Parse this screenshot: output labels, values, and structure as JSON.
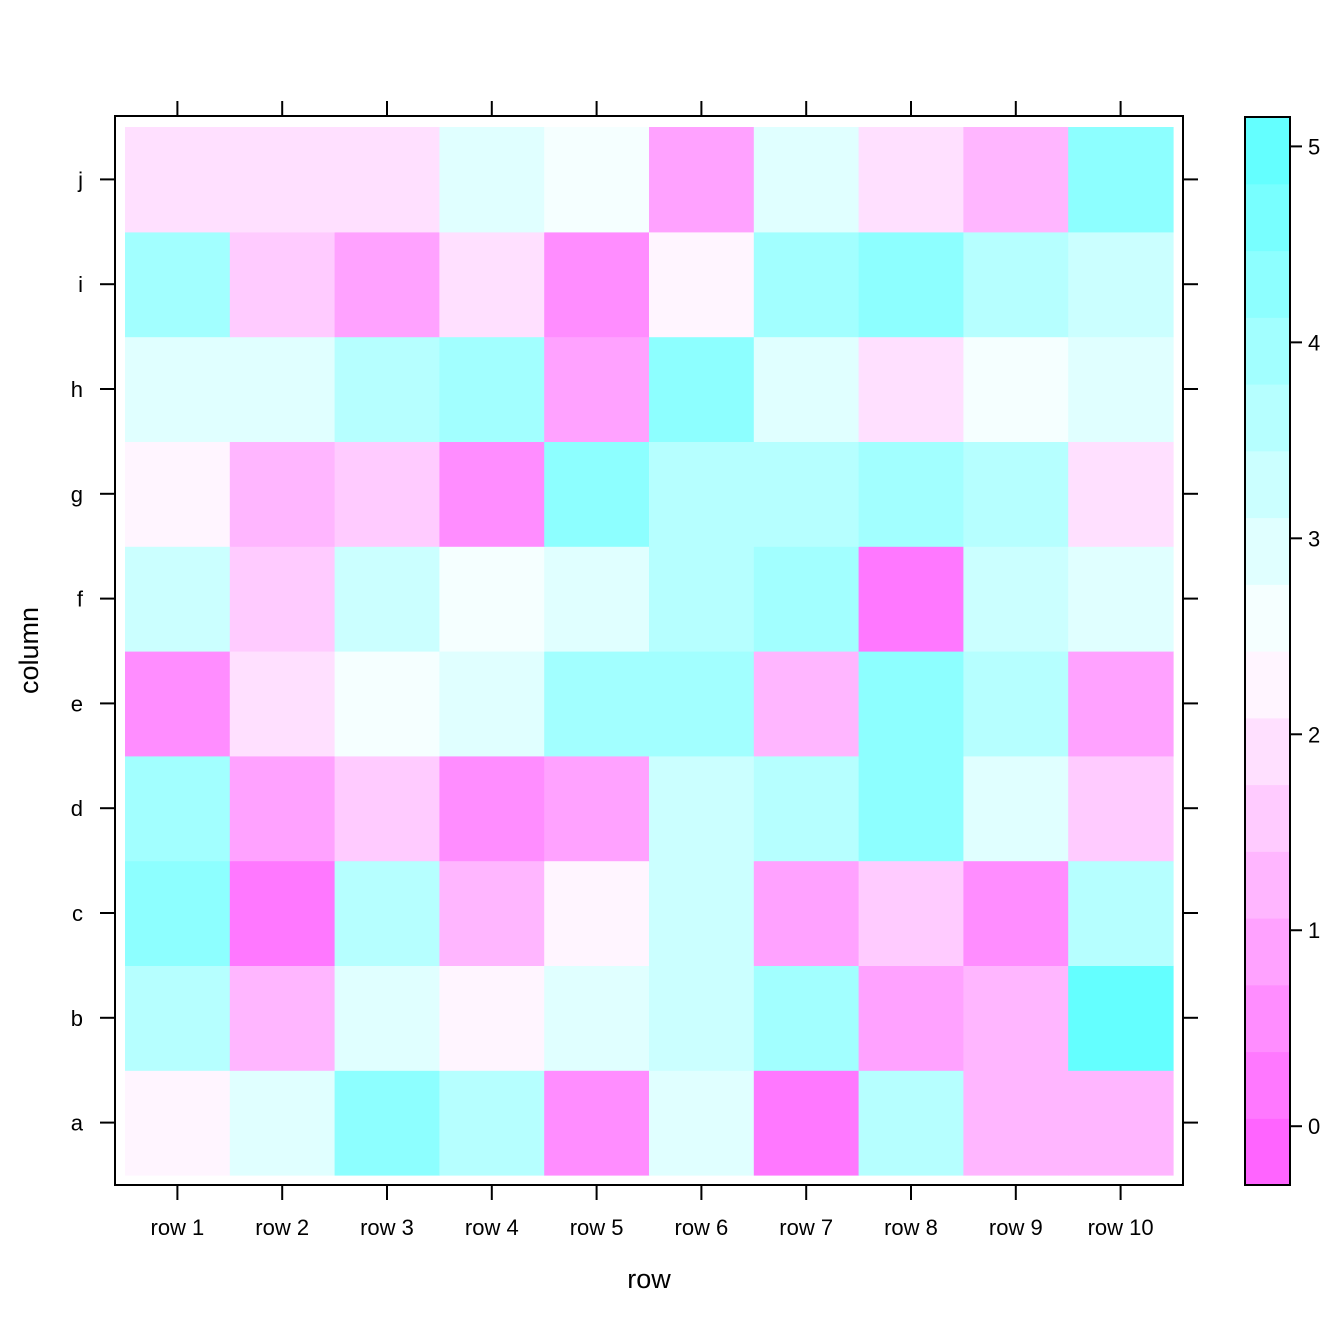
{
  "chart_data": {
    "type": "heatmap",
    "title": "",
    "xlabel": "row",
    "ylabel": "column",
    "x_categories": [
      "row 1",
      "row 2",
      "row 3",
      "row 4",
      "row 5",
      "row 6",
      "row 7",
      "row 8",
      "row 9",
      "row 10"
    ],
    "y_categories": [
      "a",
      "b",
      "c",
      "d",
      "e",
      "f",
      "g",
      "h",
      "i",
      "j"
    ],
    "values": [
      [
        2.3,
        3.1,
        4.45,
        3.6,
        0.55,
        2.95,
        0.05,
        3.5,
        1.1,
        1.35
      ],
      [
        3.5,
        1.3,
        2.95,
        2.15,
        2.9,
        3.4,
        3.95,
        1.0,
        1.3,
        4.85
      ],
      [
        4.4,
        0.15,
        3.65,
        1.1,
        2.1,
        3.2,
        0.85,
        1.6,
        0.6,
        3.7
      ],
      [
        3.95,
        0.95,
        1.6,
        0.6,
        0.8,
        3.35,
        3.7,
        4.2,
        3.0,
        1.7
      ],
      [
        0.4,
        1.75,
        2.65,
        3.0,
        4.1,
        3.8,
        1.2,
        4.25,
        3.75,
        0.95
      ],
      [
        3.25,
        1.65,
        3.2,
        2.65,
        2.85,
        3.55,
        4.05,
        0.35,
        3.25,
        2.95
      ],
      [
        2.3,
        1.25,
        1.6,
        0.45,
        4.3,
        3.6,
        3.6,
        3.9,
        3.45,
        2.05
      ],
      [
        2.95,
        2.95,
        3.55,
        3.8,
        0.75,
        4.4,
        3.05,
        2.05,
        2.65,
        3.0
      ],
      [
        3.8,
        1.6,
        0.8,
        1.95,
        0.5,
        2.35,
        3.8,
        4.15,
        3.6,
        3.4
      ],
      [
        1.9,
        1.9,
        1.9,
        3.1,
        2.7,
        0.95,
        3.1,
        1.95,
        1.25,
        4.15
      ]
    ],
    "colorbar": {
      "range": [
        -0.3,
        5.15
      ],
      "ticks": [
        "0",
        "1",
        "2",
        "3",
        "4",
        "5"
      ],
      "low_color": "#ff00ff",
      "high_color": "#00ffff",
      "steps": 16
    },
    "grid": false,
    "legend": "right"
  }
}
